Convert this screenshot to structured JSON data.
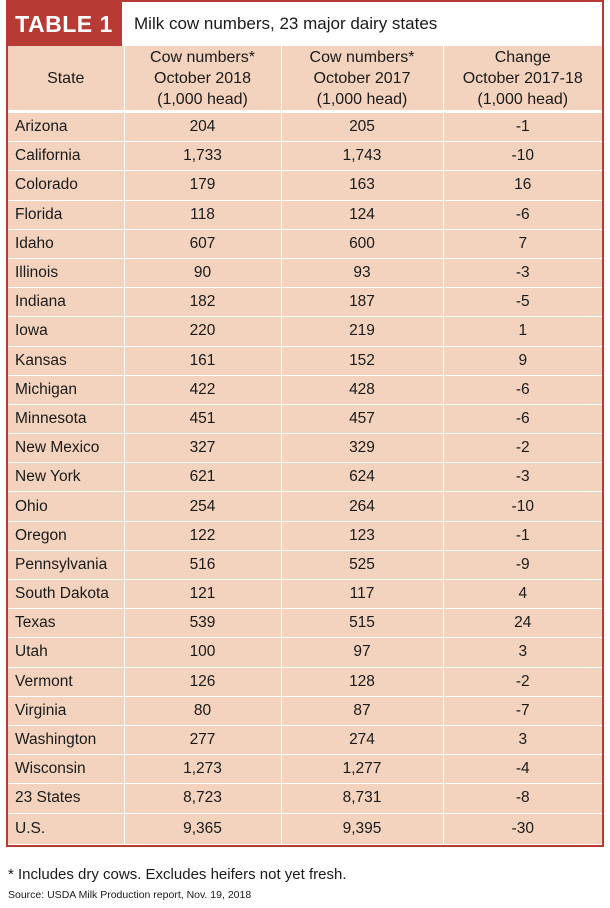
{
  "table": {
    "tag": "TABLE 1",
    "caption": "Milk cow numbers, 23 major dairy states",
    "headers": [
      [
        "State"
      ],
      [
        "Cow numbers*",
        "October 2018",
        "(1,000 head)"
      ],
      [
        "Cow numbers*",
        "October 2017",
        "(1,000 head)"
      ],
      [
        "Change",
        "October 2017-18",
        "(1,000 head)"
      ]
    ],
    "rows": [
      [
        "Arizona",
        "204",
        "205",
        "-1"
      ],
      [
        "California",
        "1,733",
        "1,743",
        "-10"
      ],
      [
        "Colorado",
        "179",
        "163",
        "16"
      ],
      [
        "Florida",
        "118",
        "124",
        "-6"
      ],
      [
        "Idaho",
        "607",
        "600",
        "7"
      ],
      [
        "Illinois",
        "90",
        "93",
        "-3"
      ],
      [
        "Indiana",
        "182",
        "187",
        "-5"
      ],
      [
        "Iowa",
        "220",
        "219",
        "1"
      ],
      [
        "Kansas",
        "161",
        "152",
        "9"
      ],
      [
        "Michigan",
        "422",
        "428",
        "-6"
      ],
      [
        "Minnesota",
        "451",
        "457",
        "-6"
      ],
      [
        "New Mexico",
        "327",
        "329",
        "-2"
      ],
      [
        "New York",
        "621",
        "624",
        "-3"
      ],
      [
        "Ohio",
        "254",
        "264",
        "-10"
      ],
      [
        "Oregon",
        "122",
        "123",
        "-1"
      ],
      [
        "Pennsylvania",
        "516",
        "525",
        "-9"
      ],
      [
        "South Dakota",
        "121",
        "117",
        "4"
      ],
      [
        "Texas",
        "539",
        "515",
        "24"
      ],
      [
        "Utah",
        "100",
        "97",
        "3"
      ],
      [
        "Vermont",
        "126",
        "128",
        "-2"
      ],
      [
        "Virginia",
        "80",
        "87",
        "-7"
      ],
      [
        "Washington",
        "277",
        "274",
        "3"
      ],
      [
        "Wisconsin",
        "1,273",
        "1,277",
        "-4"
      ],
      [
        "23 States",
        "8,723",
        "8,731",
        "-8"
      ],
      [
        "U.S.",
        "9,365",
        "9,395",
        "-30"
      ]
    ]
  },
  "footnote": "* Includes dry cows. Excludes heifers not yet fresh.",
  "source": "Source: USDA Milk Production report, Nov. 19, 2018",
  "colors": {
    "accent": "#b73a35",
    "row_fill": "#f6dcc9",
    "header_fill": "#f3d3bd"
  }
}
